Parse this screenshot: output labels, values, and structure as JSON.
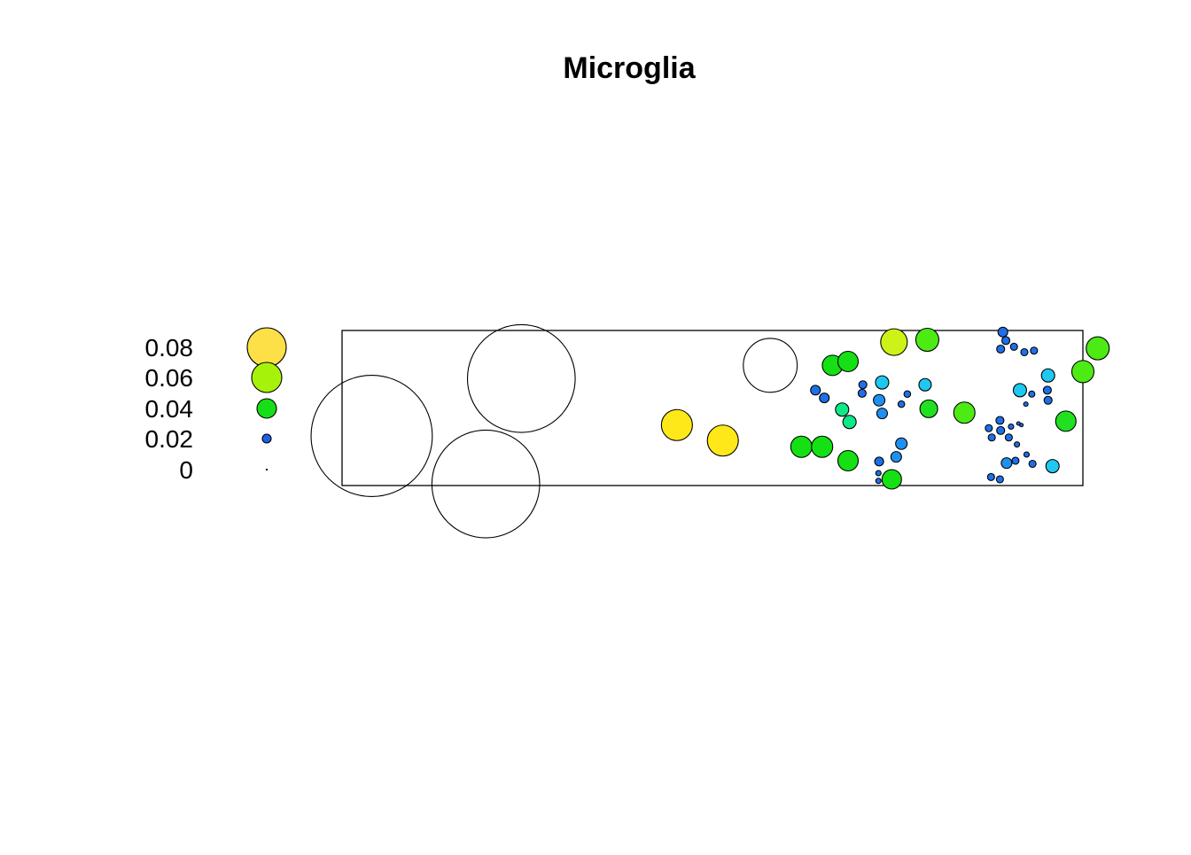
{
  "chart_data": {
    "type": "scatter",
    "title": "Microglia",
    "xlabel": "",
    "ylabel": "",
    "xlim": [
      0,
      100
    ],
    "ylim": [
      0,
      20
    ],
    "axes": false,
    "grid": false,
    "legend_placement": "left",
    "encoding": "bubble size and fill colour encode value",
    "legend": {
      "entries": [
        {
          "label": "0.08",
          "value": 0.08,
          "color": "#FDE047"
        },
        {
          "label": "0.06",
          "value": 0.06,
          "color": "#A6F20A"
        },
        {
          "label": "0.04",
          "value": 0.04,
          "color": "#17DE17"
        },
        {
          "label": "0.02",
          "value": 0.02,
          "color": "#1F5FE8"
        },
        {
          "label": "0",
          "value": 0,
          "color": "#000000"
        }
      ]
    },
    "outlier_points": [
      {
        "x": 4,
        "y": 6.4,
        "value": 0.36
      },
      {
        "x": 24.2,
        "y": 13.8,
        "value": 0.32
      },
      {
        "x": 19.4,
        "y": 0.2,
        "value": 0.32
      },
      {
        "x": 57.8,
        "y": 15.5,
        "value": 0.16
      }
    ],
    "points": [
      {
        "x": 45.2,
        "y": 7.8,
        "value": 0.07,
        "color": "#FFE81A"
      },
      {
        "x": 51.4,
        "y": 5.8,
        "value": 0.07,
        "color": "#FFE81A"
      },
      {
        "x": 62,
        "y": 5,
        "value": 0.048,
        "color": "#14E014"
      },
      {
        "x": 64.8,
        "y": 5,
        "value": 0.048,
        "color": "#14E014"
      },
      {
        "x": 66.2,
        "y": 15.5,
        "value": 0.046,
        "color": "#14E014"
      },
      {
        "x": 68.3,
        "y": 16,
        "value": 0.046,
        "color": "#14E014"
      },
      {
        "x": 68.3,
        "y": 3.2,
        "value": 0.046,
        "color": "#14E014"
      },
      {
        "x": 67.5,
        "y": 9.8,
        "value": 0.03,
        "color": "#10E888"
      },
      {
        "x": 68.5,
        "y": 8.2,
        "value": 0.03,
        "color": "#10E888"
      },
      {
        "x": 74.5,
        "y": 18.5,
        "value": 0.06,
        "color": "#CCF218"
      },
      {
        "x": 79,
        "y": 18.8,
        "value": 0.052,
        "color": "#4CEB14"
      },
      {
        "x": 79.2,
        "y": 9.9,
        "value": 0.04,
        "color": "#20E020"
      },
      {
        "x": 74.2,
        "y": 0.8,
        "value": 0.044,
        "color": "#14E014"
      },
      {
        "x": 84,
        "y": 9.4,
        "value": 0.048,
        "color": "#4CEB14"
      },
      {
        "x": 72.9,
        "y": 13.3,
        "value": 0.03,
        "color": "#1EC8F0"
      },
      {
        "x": 78.7,
        "y": 13,
        "value": 0.028,
        "color": "#1EC8F0"
      },
      {
        "x": 72.5,
        "y": 11,
        "value": 0.026,
        "color": "#1E90F0"
      },
      {
        "x": 72.9,
        "y": 9.3,
        "value": 0.024,
        "color": "#1E90F0"
      },
      {
        "x": 63.9,
        "y": 12.3,
        "value": 0.022,
        "color": "#1E6FE8"
      },
      {
        "x": 65.1,
        "y": 11.3,
        "value": 0.022,
        "color": "#1E6FE8"
      },
      {
        "x": 70.3,
        "y": 13,
        "value": 0.018,
        "color": "#1E6FE8"
      },
      {
        "x": 70.2,
        "y": 11.9,
        "value": 0.018,
        "color": "#1E6FE8"
      },
      {
        "x": 76.3,
        "y": 11.8,
        "value": 0.015,
        "color": "#1E6FE8"
      },
      {
        "x": 75.5,
        "y": 10.5,
        "value": 0.015,
        "color": "#1E6FE8"
      },
      {
        "x": 75.5,
        "y": 5.4,
        "value": 0.026,
        "color": "#1E90F0"
      },
      {
        "x": 74.8,
        "y": 3.7,
        "value": 0.024,
        "color": "#1E90F0"
      },
      {
        "x": 72.5,
        "y": 3.1,
        "value": 0.02,
        "color": "#1E6FE8"
      },
      {
        "x": 72.4,
        "y": 1.6,
        "value": 0.012,
        "color": "#1E6FE8"
      },
      {
        "x": 72.4,
        "y": 0.6,
        "value": 0.012,
        "color": "#1E6FE8"
      },
      {
        "x": 102,
        "y": 17.7,
        "value": 0.052,
        "color": "#4CEB14"
      },
      {
        "x": 100,
        "y": 14.7,
        "value": 0.05,
        "color": "#4CEB14"
      },
      {
        "x": 97.7,
        "y": 8.3,
        "value": 0.046,
        "color": "#20E020"
      },
      {
        "x": 95.3,
        "y": 14.2,
        "value": 0.03,
        "color": "#1EC8F0"
      },
      {
        "x": 91.5,
        "y": 12.3,
        "value": 0.03,
        "color": "#1EC8F0"
      },
      {
        "x": 95.9,
        "y": 2.5,
        "value": 0.03,
        "color": "#1EC8F0"
      },
      {
        "x": 89.7,
        "y": 2.9,
        "value": 0.024,
        "color": "#1E90F0"
      },
      {
        "x": 89.2,
        "y": 19.8,
        "value": 0.022,
        "color": "#1E6FE8"
      },
      {
        "x": 89.6,
        "y": 18.7,
        "value": 0.018,
        "color": "#1E6FE8"
      },
      {
        "x": 90.7,
        "y": 17.9,
        "value": 0.016,
        "color": "#1E6FE8"
      },
      {
        "x": 92.1,
        "y": 17.2,
        "value": 0.016,
        "color": "#1E6FE8"
      },
      {
        "x": 93.4,
        "y": 17.4,
        "value": 0.016,
        "color": "#1E6FE8"
      },
      {
        "x": 88.9,
        "y": 17.6,
        "value": 0.018,
        "color": "#1E6FE8"
      },
      {
        "x": 95.2,
        "y": 12.3,
        "value": 0.018,
        "color": "#1E6FE8"
      },
      {
        "x": 95.3,
        "y": 11,
        "value": 0.018,
        "color": "#1E6FE8"
      },
      {
        "x": 93.1,
        "y": 11.8,
        "value": 0.014,
        "color": "#1E6FE8"
      },
      {
        "x": 92.3,
        "y": 10.5,
        "value": 0.01,
        "color": "#1E6FE8"
      },
      {
        "x": 88.8,
        "y": 8.4,
        "value": 0.018,
        "color": "#1E6FE8"
      },
      {
        "x": 87.3,
        "y": 7.4,
        "value": 0.016,
        "color": "#1E6FE8"
      },
      {
        "x": 88.9,
        "y": 7.1,
        "value": 0.018,
        "color": "#1E6FE8"
      },
      {
        "x": 90.3,
        "y": 7.6,
        "value": 0.012,
        "color": "#1E6FE8"
      },
      {
        "x": 87.7,
        "y": 6.2,
        "value": 0.016,
        "color": "#1E6FE8"
      },
      {
        "x": 90,
        "y": 6.2,
        "value": 0.016,
        "color": "#1E6FE8"
      },
      {
        "x": 91.1,
        "y": 5.3,
        "value": 0.012,
        "color": "#1E6FE8"
      },
      {
        "x": 92.4,
        "y": 4,
        "value": 0.012,
        "color": "#1E6FE8"
      },
      {
        "x": 93.2,
        "y": 2.8,
        "value": 0.016,
        "color": "#1E6FE8"
      },
      {
        "x": 90.9,
        "y": 3.2,
        "value": 0.016,
        "color": "#1E6FE8"
      },
      {
        "x": 87.6,
        "y": 1.1,
        "value": 0.016,
        "color": "#1E6FE8"
      },
      {
        "x": 88.8,
        "y": 0.8,
        "value": 0.016,
        "color": "#1E6FE8"
      },
      {
        "x": 91.7,
        "y": 7.8,
        "value": 0.008,
        "color": "#1E6FE8"
      },
      {
        "x": 91.3,
        "y": 8,
        "value": 0.008,
        "color": "#1E6FE8"
      }
    ]
  }
}
